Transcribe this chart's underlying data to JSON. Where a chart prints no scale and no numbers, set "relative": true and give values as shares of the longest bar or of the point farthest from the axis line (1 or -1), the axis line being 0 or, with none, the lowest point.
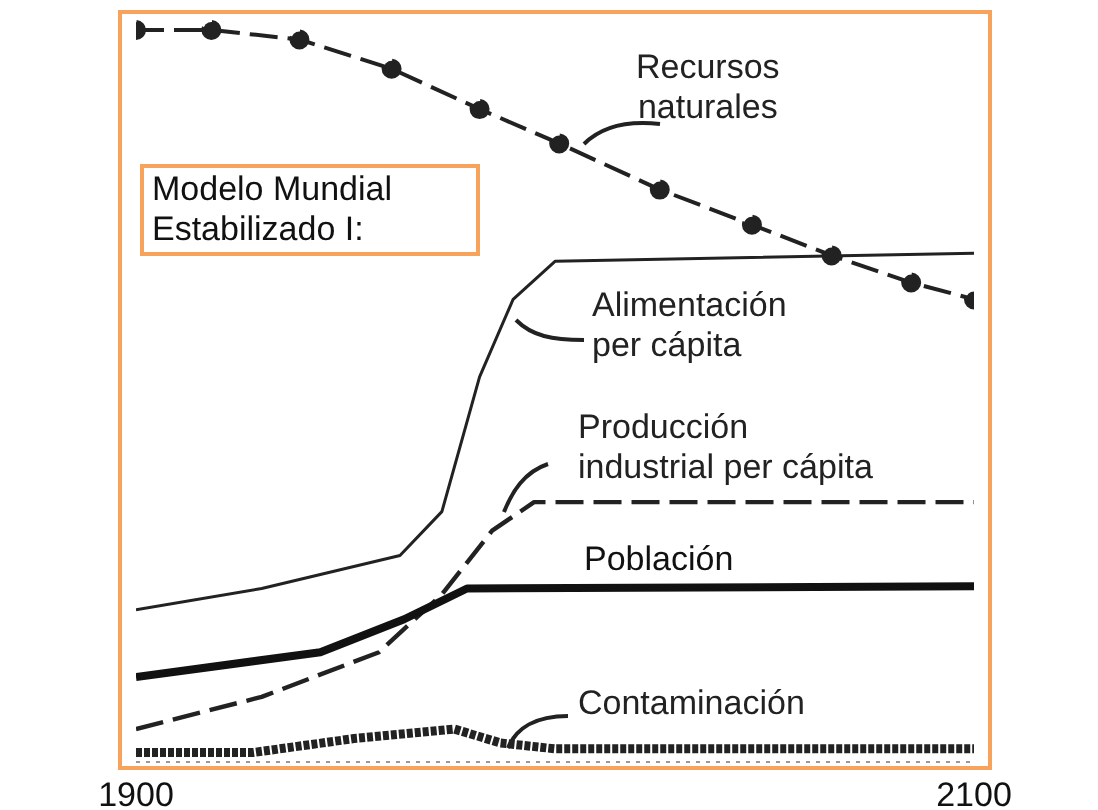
{
  "chart_data": {
    "type": "line",
    "title": "Modelo Mundial Estabilizado I:",
    "relative": true,
    "xlim": [
      1900,
      2100
    ],
    "xticks": [
      1900,
      2100
    ],
    "series": [
      {
        "name": "Recursos naturales",
        "color": "#222222",
        "line_style": "dashed",
        "marker": "circle",
        "x": [
          1900,
          1918,
          1939,
          1961,
          1982,
          2001,
          2025,
          2047,
          2066,
          2085,
          2100
        ],
        "values": [
          1.0,
          1.0,
          0.987,
          0.947,
          0.892,
          0.845,
          0.782,
          0.734,
          0.692,
          0.655,
          0.632
        ]
      },
      {
        "name": "Alimentación per cápita",
        "color": "#222222",
        "line_style": "solid",
        "x": [
          1900,
          1930,
          1963,
          1973,
          1982,
          1990,
          2000,
          2100
        ],
        "values": [
          0.208,
          0.237,
          0.282,
          0.342,
          0.526,
          0.632,
          0.684,
          0.695
        ]
      },
      {
        "name": "Producción industrial per cápita",
        "color": "#222222",
        "line_style": "dashed",
        "x": [
          1900,
          1930,
          1958,
          1973,
          1985,
          1995,
          2100
        ],
        "values": [
          0.045,
          0.089,
          0.15,
          0.229,
          0.316,
          0.355,
          0.355
        ]
      },
      {
        "name": "Población",
        "color": "#111111",
        "line_style": "solid",
        "x": [
          1900,
          1944,
          1964,
          1979,
          2100
        ],
        "values": [
          0.116,
          0.15,
          0.195,
          0.237,
          0.24
        ]
      },
      {
        "name": "Contaminación",
        "color": "#222222",
        "line_style": "dotted",
        "x": [
          1900,
          1928,
          1952,
          1976,
          1987,
          2000,
          2100
        ],
        "values": [
          0.013,
          0.013,
          0.032,
          0.045,
          0.026,
          0.018,
          0.018
        ]
      }
    ]
  }
}
